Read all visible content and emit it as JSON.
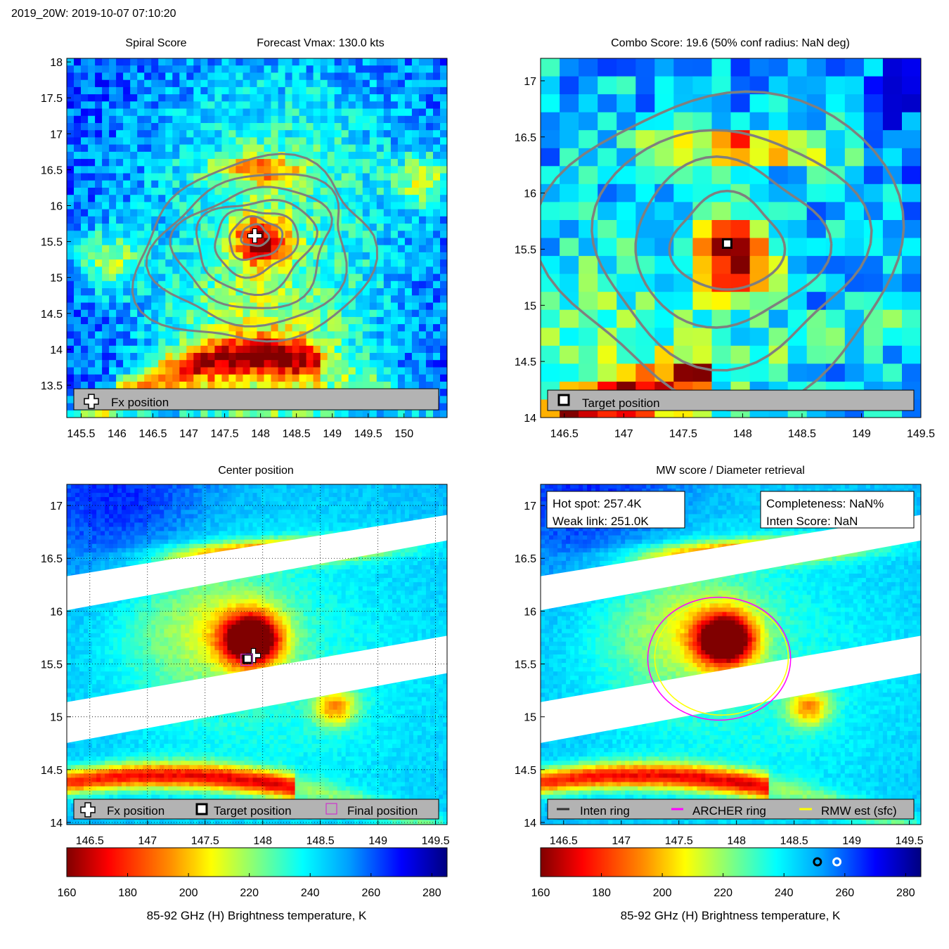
{
  "figure_title": "2019_20W: 2019-10-07 07:10:20",
  "colors": {
    "contour": "#7f7f7f",
    "legend_bg": "#b3b3b3",
    "swath_gap": "#ffffff",
    "inten_ring": "#333333",
    "archer_ring": "#ff00ff",
    "rmw_ring": "#ffff00"
  },
  "chart_data": [
    {
      "id": "spiral",
      "type": "heatmap",
      "title": "Spiral Score",
      "title_right": "Forecast Vmax: 130.0 kts",
      "xlim": [
        145.3,
        150.6
      ],
      "ylim": [
        13.05,
        18.05
      ],
      "xticks": [
        "145.5",
        "146",
        "146.5",
        "147",
        "147.5",
        "148",
        "148.5",
        "149",
        "149.5",
        "150"
      ],
      "xtick_values": [
        145.5,
        146,
        146.5,
        147,
        147.5,
        148,
        148.5,
        149,
        149.5,
        150
      ],
      "yticks": [
        "18",
        "17.5",
        "17",
        "16.5",
        "16",
        "15.5",
        "15",
        "14.5",
        "14",
        "13.5"
      ],
      "ytick_values": [
        18,
        17.5,
        17,
        16.5,
        16,
        15.5,
        15,
        14.5,
        14,
        13.5
      ],
      "center": [
        147.92,
        15.58
      ],
      "contour_radii_deg": [
        0.18,
        0.35,
        0.55,
        0.78,
        1.02,
        1.28,
        1.55
      ],
      "markers": [
        {
          "type": "fx_position",
          "lon": 147.92,
          "lat": 15.58
        }
      ],
      "legend": [
        {
          "icon": "plus-icon",
          "label": "Fx position"
        }
      ]
    },
    {
      "id": "combo",
      "type": "heatmap",
      "title": "Combo Score: 19.6  (50% conf radius: NaN deg)",
      "xlim": [
        146.3,
        149.5
      ],
      "ylim": [
        14.0,
        17.2
      ],
      "xticks": [
        "146.5",
        "147",
        "147.5",
        "148",
        "148.5",
        "149",
        "149.5"
      ],
      "xtick_values": [
        146.5,
        147,
        147.5,
        148,
        148.5,
        149,
        149.5
      ],
      "yticks": [
        "17",
        "16.5",
        "16",
        "15.5",
        "15",
        "14.5",
        "14"
      ],
      "ytick_values": [
        17,
        16.5,
        16,
        15.5,
        15,
        14.5,
        14
      ],
      "center": [
        147.87,
        15.55
      ],
      "contour_radii_deg": [
        0.42,
        0.72,
        1.02,
        1.35
      ],
      "markers": [
        {
          "type": "target_position",
          "lon": 147.87,
          "lat": 15.55
        }
      ],
      "legend": [
        {
          "icon": "square-icon",
          "label": "Target position"
        }
      ]
    },
    {
      "id": "center",
      "type": "heatmap",
      "title": "Center position",
      "xlim": [
        146.3,
        149.6
      ],
      "ylim": [
        13.98,
        17.2
      ],
      "xticks": [
        "146.5",
        "147",
        "147.5",
        "148",
        "148.5",
        "149",
        "149.5"
      ],
      "xtick_values": [
        146.5,
        147,
        147.5,
        148,
        148.5,
        149,
        149.5
      ],
      "yticks": [
        "17",
        "16.5",
        "16",
        "15.5",
        "15",
        "14.5",
        "14"
      ],
      "ytick_values": [
        17,
        16.5,
        16,
        15.5,
        15,
        14.5,
        14
      ],
      "grid": true,
      "markers": [
        {
          "type": "fx_position",
          "lon": 147.92,
          "lat": 15.58
        },
        {
          "type": "target_position",
          "lon": 147.87,
          "lat": 15.55
        },
        {
          "type": "final_position",
          "lon": 147.86,
          "lat": 15.54
        }
      ],
      "legend": [
        {
          "icon": "plus-icon",
          "label": "Fx position"
        },
        {
          "icon": "square-icon",
          "label": "Target position"
        },
        {
          "icon": "magenta-square-icon",
          "label": "Final position"
        }
      ]
    },
    {
      "id": "mw",
      "type": "heatmap",
      "title": "MW score / Diameter retrieval",
      "xlim": [
        146.3,
        149.6
      ],
      "ylim": [
        13.98,
        17.2
      ],
      "xticks": [
        "146.5",
        "147",
        "147.5",
        "148",
        "148.5",
        "149",
        "149.5"
      ],
      "xtick_values": [
        146.5,
        147,
        147.5,
        148,
        148.5,
        149,
        149.5
      ],
      "yticks": [
        "17",
        "16.5",
        "16",
        "15.5",
        "15",
        "14.5",
        "14"
      ],
      "ytick_values": [
        17,
        16.5,
        16,
        15.5,
        15,
        14.5,
        14
      ],
      "info_left": [
        "Hot spot: 257.4K",
        "Weak link: 251.0K"
      ],
      "info_right": [
        "Completeness: NaN%",
        "Inten Score: NaN"
      ],
      "rings": [
        {
          "type": "archer",
          "lon": 147.85,
          "lat": 15.55,
          "radius_deg": 0.62
        },
        {
          "type": "rmw",
          "lon": 147.87,
          "lat": 15.56,
          "radius_deg": 0.58
        }
      ],
      "legend": [
        {
          "icon": "dark-line-icon",
          "label": "Inten ring"
        },
        {
          "icon": "magenta-line-icon",
          "label": "ARCHER ring"
        },
        {
          "icon": "yellow-line-icon",
          "label": "RMW est (sfc)"
        }
      ]
    }
  ],
  "colorbars": [
    {
      "label": "85-92 GHz (H) Brightness temperature, K",
      "range": [
        160,
        285
      ],
      "ticks": [
        "160",
        "180",
        "200",
        "220",
        "240",
        "260",
        "280"
      ],
      "tick_values": [
        160,
        180,
        200,
        220,
        240,
        260,
        280
      ],
      "markers": []
    },
    {
      "label": "85-92 GHz (H) Brightness temperature, K",
      "range": [
        160,
        285
      ],
      "ticks": [
        "160",
        "180",
        "200",
        "220",
        "240",
        "260",
        "280"
      ],
      "tick_values": [
        160,
        180,
        200,
        220,
        240,
        260,
        280
      ],
      "markers": [
        {
          "name": "weak-link",
          "value": 251.0,
          "style": "black"
        },
        {
          "name": "hot-spot",
          "value": 257.4,
          "style": "white"
        }
      ]
    }
  ]
}
